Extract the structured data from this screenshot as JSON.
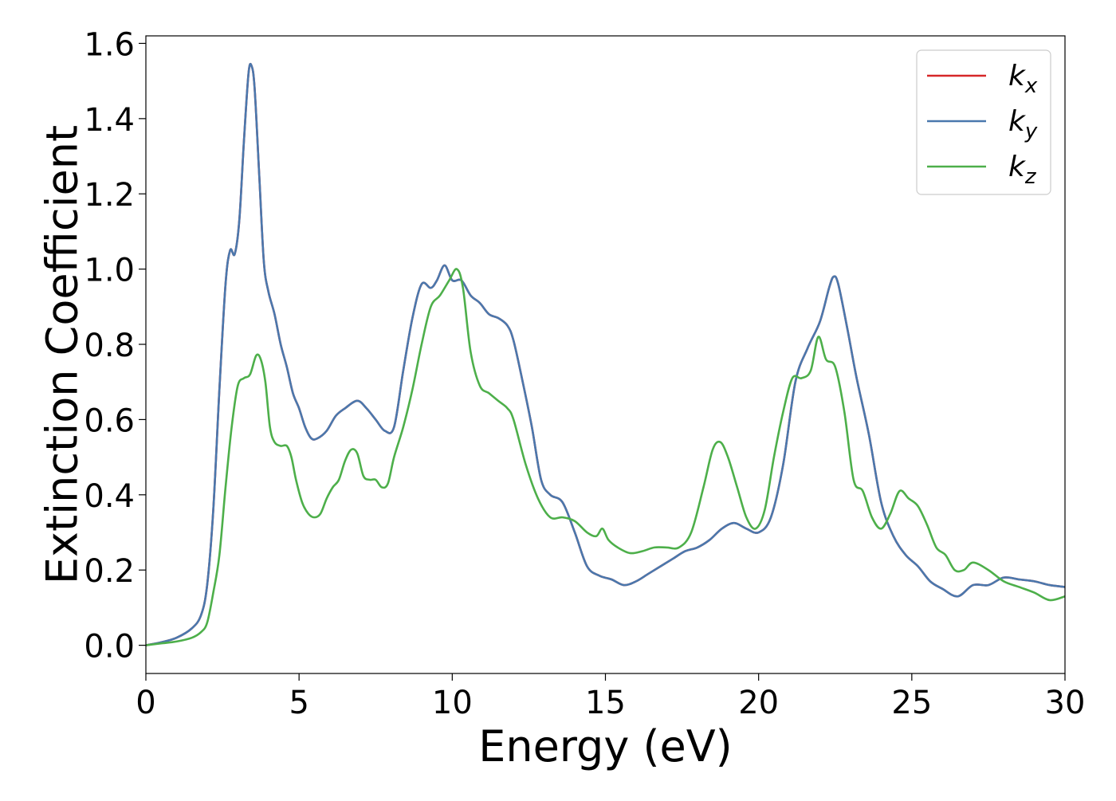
{
  "chart_data": {
    "type": "line",
    "title": "",
    "xlabel": "Energy (eV)",
    "ylabel": "Extinction Coefficient",
    "xlim": [
      0,
      30
    ],
    "ylim": [
      -0.075,
      1.62
    ],
    "xticks": [
      0,
      5,
      10,
      15,
      20,
      25,
      30
    ],
    "yticks": [
      0.0,
      0.2,
      0.4,
      0.6,
      0.8,
      1.0,
      1.2,
      1.4,
      1.6
    ],
    "xtick_labels": [
      "0",
      "5",
      "10",
      "15",
      "20",
      "25",
      "30"
    ],
    "ytick_labels": [
      "0.0",
      "0.2",
      "0.4",
      "0.6",
      "0.8",
      "1.0",
      "1.2",
      "1.4",
      "1.6"
    ],
    "grid": false,
    "legend_position": "top-right",
    "series": [
      {
        "name": "k_x",
        "legend_base": "k",
        "legend_sub": "x",
        "color": "#d62728",
        "x": [
          0,
          0.5,
          1.0,
          1.5,
          1.8,
          2.0,
          2.2,
          2.4,
          2.6,
          2.75,
          2.9,
          3.05,
          3.2,
          3.35,
          3.45,
          3.55,
          3.7,
          3.85,
          4.0,
          4.2,
          4.4,
          4.6,
          4.8,
          5.0,
          5.2,
          5.4,
          5.6,
          5.9,
          6.2,
          6.5,
          6.9,
          7.2,
          7.5,
          7.8,
          8.1,
          8.4,
          8.7,
          9.0,
          9.3,
          9.5,
          9.75,
          10.0,
          10.3,
          10.6,
          10.9,
          11.2,
          11.5,
          11.8,
          12.0,
          12.3,
          12.6,
          12.9,
          13.2,
          13.6,
          14.0,
          14.4,
          14.8,
          15.2,
          15.6,
          16.0,
          16.4,
          16.8,
          17.2,
          17.6,
          18.0,
          18.4,
          18.8,
          19.2,
          19.6,
          20.0,
          20.4,
          20.8,
          21.2,
          21.6,
          22.0,
          22.3,
          22.45,
          22.6,
          22.9,
          23.2,
          23.6,
          24.0,
          24.4,
          24.8,
          25.2,
          25.6,
          26.0,
          26.5,
          27.0,
          27.5,
          28.0,
          28.5,
          29.0,
          29.5,
          30.0
        ],
        "y": [
          0.0,
          0.008,
          0.02,
          0.045,
          0.08,
          0.16,
          0.36,
          0.68,
          0.96,
          1.05,
          1.04,
          1.13,
          1.34,
          1.52,
          1.54,
          1.48,
          1.25,
          1.02,
          0.94,
          0.88,
          0.8,
          0.74,
          0.67,
          0.63,
          0.58,
          0.55,
          0.55,
          0.57,
          0.61,
          0.63,
          0.65,
          0.63,
          0.6,
          0.57,
          0.58,
          0.73,
          0.87,
          0.96,
          0.95,
          0.97,
          1.01,
          0.97,
          0.97,
          0.93,
          0.91,
          0.88,
          0.87,
          0.85,
          0.81,
          0.7,
          0.58,
          0.44,
          0.4,
          0.38,
          0.3,
          0.21,
          0.185,
          0.175,
          0.16,
          0.17,
          0.19,
          0.21,
          0.23,
          0.25,
          0.26,
          0.28,
          0.31,
          0.325,
          0.31,
          0.3,
          0.34,
          0.48,
          0.7,
          0.79,
          0.86,
          0.95,
          0.98,
          0.96,
          0.84,
          0.71,
          0.56,
          0.38,
          0.29,
          0.24,
          0.21,
          0.17,
          0.15,
          0.13,
          0.16,
          0.16,
          0.18,
          0.175,
          0.17,
          0.16,
          0.155
        ]
      },
      {
        "name": "k_y",
        "legend_base": "k",
        "legend_sub": "y",
        "color": "#4a78ad",
        "x": [
          0,
          0.5,
          1.0,
          1.5,
          1.8,
          2.0,
          2.2,
          2.4,
          2.6,
          2.75,
          2.9,
          3.05,
          3.2,
          3.35,
          3.45,
          3.55,
          3.7,
          3.85,
          4.0,
          4.2,
          4.4,
          4.6,
          4.8,
          5.0,
          5.2,
          5.4,
          5.6,
          5.9,
          6.2,
          6.5,
          6.9,
          7.2,
          7.5,
          7.8,
          8.1,
          8.4,
          8.7,
          9.0,
          9.3,
          9.5,
          9.75,
          10.0,
          10.3,
          10.6,
          10.9,
          11.2,
          11.5,
          11.8,
          12.0,
          12.3,
          12.6,
          12.9,
          13.2,
          13.6,
          14.0,
          14.4,
          14.8,
          15.2,
          15.6,
          16.0,
          16.4,
          16.8,
          17.2,
          17.6,
          18.0,
          18.4,
          18.8,
          19.2,
          19.6,
          20.0,
          20.4,
          20.8,
          21.2,
          21.6,
          22.0,
          22.3,
          22.45,
          22.6,
          22.9,
          23.2,
          23.6,
          24.0,
          24.4,
          24.8,
          25.2,
          25.6,
          26.0,
          26.5,
          27.0,
          27.5,
          28.0,
          28.5,
          29.0,
          29.5,
          30.0
        ],
        "y": [
          0.0,
          0.008,
          0.02,
          0.045,
          0.08,
          0.16,
          0.36,
          0.68,
          0.96,
          1.05,
          1.04,
          1.13,
          1.34,
          1.52,
          1.54,
          1.48,
          1.25,
          1.02,
          0.94,
          0.88,
          0.8,
          0.74,
          0.67,
          0.63,
          0.58,
          0.55,
          0.55,
          0.57,
          0.61,
          0.63,
          0.65,
          0.63,
          0.6,
          0.57,
          0.58,
          0.73,
          0.87,
          0.96,
          0.95,
          0.97,
          1.01,
          0.97,
          0.97,
          0.93,
          0.91,
          0.88,
          0.87,
          0.85,
          0.81,
          0.7,
          0.58,
          0.44,
          0.4,
          0.38,
          0.3,
          0.21,
          0.185,
          0.175,
          0.16,
          0.17,
          0.19,
          0.21,
          0.23,
          0.25,
          0.26,
          0.28,
          0.31,
          0.325,
          0.31,
          0.3,
          0.34,
          0.48,
          0.7,
          0.79,
          0.86,
          0.95,
          0.98,
          0.96,
          0.84,
          0.71,
          0.56,
          0.38,
          0.29,
          0.24,
          0.21,
          0.17,
          0.15,
          0.13,
          0.16,
          0.16,
          0.18,
          0.175,
          0.17,
          0.16,
          0.155
        ]
      },
      {
        "name": "k_z",
        "legend_base": "k",
        "legend_sub": "z",
        "color": "#4daf4a",
        "x": [
          0,
          0.5,
          1.0,
          1.5,
          1.8,
          2.0,
          2.2,
          2.4,
          2.6,
          2.8,
          3.0,
          3.2,
          3.4,
          3.6,
          3.75,
          3.9,
          4.05,
          4.2,
          4.4,
          4.6,
          4.75,
          4.9,
          5.1,
          5.3,
          5.5,
          5.7,
          5.9,
          6.1,
          6.3,
          6.5,
          6.7,
          6.9,
          7.1,
          7.3,
          7.5,
          7.7,
          7.9,
          8.1,
          8.4,
          8.7,
          9.0,
          9.3,
          9.6,
          9.9,
          10.15,
          10.35,
          10.6,
          10.9,
          11.2,
          11.5,
          11.8,
          12.0,
          12.4,
          12.8,
          13.2,
          13.6,
          14.0,
          14.4,
          14.7,
          14.9,
          15.1,
          15.4,
          15.8,
          16.2,
          16.6,
          17.0,
          17.4,
          17.8,
          18.2,
          18.5,
          18.75,
          19.0,
          19.3,
          19.6,
          19.9,
          20.2,
          20.5,
          20.8,
          21.1,
          21.4,
          21.7,
          21.95,
          22.2,
          22.5,
          22.8,
          23.1,
          23.4,
          23.7,
          24.0,
          24.3,
          24.6,
          24.9,
          25.2,
          25.5,
          25.8,
          26.1,
          26.4,
          26.7,
          27.0,
          27.5,
          28.0,
          28.5,
          29.0,
          29.5,
          30.0
        ],
        "y": [
          0.0,
          0.005,
          0.01,
          0.02,
          0.035,
          0.06,
          0.14,
          0.24,
          0.42,
          0.58,
          0.69,
          0.71,
          0.72,
          0.77,
          0.76,
          0.7,
          0.58,
          0.54,
          0.53,
          0.53,
          0.5,
          0.44,
          0.38,
          0.35,
          0.34,
          0.35,
          0.39,
          0.42,
          0.44,
          0.49,
          0.52,
          0.51,
          0.45,
          0.44,
          0.44,
          0.42,
          0.43,
          0.5,
          0.58,
          0.68,
          0.8,
          0.9,
          0.93,
          0.97,
          1.0,
          0.95,
          0.78,
          0.69,
          0.67,
          0.65,
          0.63,
          0.6,
          0.48,
          0.39,
          0.34,
          0.34,
          0.33,
          0.3,
          0.29,
          0.31,
          0.28,
          0.26,
          0.245,
          0.25,
          0.26,
          0.26,
          0.26,
          0.3,
          0.42,
          0.52,
          0.54,
          0.5,
          0.42,
          0.34,
          0.31,
          0.36,
          0.5,
          0.62,
          0.71,
          0.71,
          0.73,
          0.82,
          0.76,
          0.74,
          0.62,
          0.44,
          0.41,
          0.34,
          0.31,
          0.35,
          0.41,
          0.39,
          0.37,
          0.32,
          0.26,
          0.24,
          0.2,
          0.2,
          0.22,
          0.2,
          0.17,
          0.155,
          0.14,
          0.12,
          0.13
        ]
      }
    ]
  }
}
